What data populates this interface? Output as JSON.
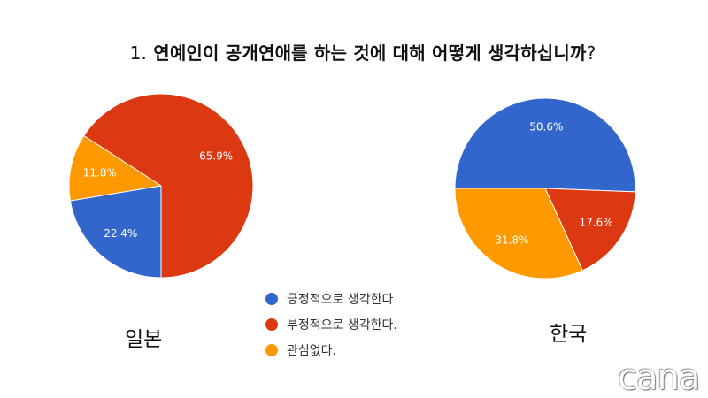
{
  "title": {
    "number": "1.",
    "text": "연예인이 공개연애를 하는 것에 대해 어떻게 생각하십니까",
    "mark": "?"
  },
  "colors": {
    "positive": "#3366cc",
    "negative": "#dc3912",
    "indifferent": "#ff9900"
  },
  "chart_data": [
    {
      "type": "pie",
      "label": "일본",
      "slices": [
        {
          "name": "긍정적으로 생각한다",
          "value": 22.4,
          "value_label": "22.4%",
          "color": "#3366cc"
        },
        {
          "name": "부정적으로 생각한다.",
          "value": 65.9,
          "value_label": "65.9%",
          "color": "#dc3912"
        },
        {
          "name": "관심없다.",
          "value": 11.8,
          "value_label": "11.8%",
          "color": "#ff9900"
        }
      ]
    },
    {
      "type": "pie",
      "label": "한국",
      "slices": [
        {
          "name": "긍정적으로 생각한다",
          "value": 50.6,
          "value_label": "50.6%",
          "color": "#3366cc"
        },
        {
          "name": "부정적으로 생각한다.",
          "value": 17.6,
          "value_label": "17.6%",
          "color": "#dc3912"
        },
        {
          "name": "관심없다.",
          "value": 31.8,
          "value_label": "31.8%",
          "color": "#ff9900"
        }
      ]
    }
  ],
  "legend": [
    {
      "label": "긍정적으로 생각한다",
      "color": "#3366cc"
    },
    {
      "label": "부정적으로 생각한다.",
      "color": "#dc3912"
    },
    {
      "label": "관심없다.",
      "color": "#ff9900"
    }
  ],
  "watermark": "cana"
}
